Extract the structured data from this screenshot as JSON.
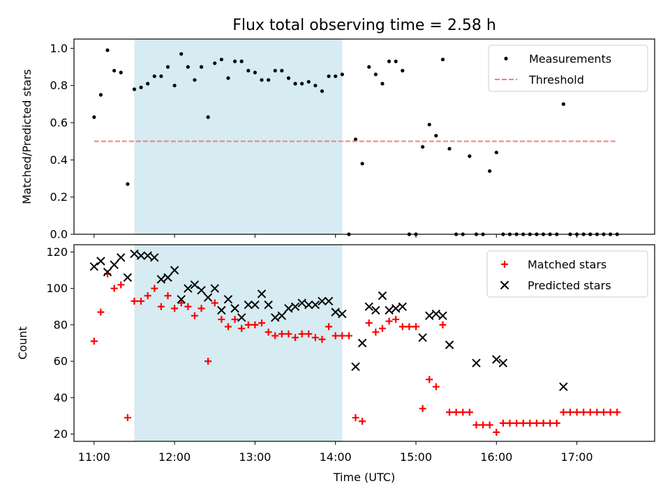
{
  "chart_data": [
    {
      "type": "scatter",
      "title": "Flux total observing time = 2.58 h",
      "xlabel": "",
      "ylabel": "Matched/Predicted stars",
      "ylim": [
        0,
        1.05
      ],
      "yticks": [
        "0.0",
        "0.2",
        "0.4",
        "0.6",
        "0.8",
        "1.0"
      ],
      "xlim": [
        "10:45",
        "17:58"
      ],
      "shaded_span": [
        "11:30",
        "14:05"
      ],
      "legend_position": "top-right",
      "series": [
        {
          "name": "Measurements",
          "color": "#000000",
          "marker": "dot",
          "x": [
            "11:00",
            "11:05",
            "11:10",
            "11:15",
            "11:20",
            "11:25",
            "11:30",
            "11:35",
            "11:40",
            "11:45",
            "11:50",
            "11:55",
            "12:00",
            "12:05",
            "12:10",
            "12:15",
            "12:20",
            "12:25",
            "12:30",
            "12:35",
            "12:40",
            "12:45",
            "12:50",
            "12:55",
            "13:00",
            "13:05",
            "13:10",
            "13:15",
            "13:20",
            "13:25",
            "13:30",
            "13:35",
            "13:40",
            "13:45",
            "13:50",
            "13:55",
            "14:00",
            "14:05",
            "14:10",
            "14:15",
            "14:20",
            "14:25",
            "14:30",
            "14:35",
            "14:40",
            "14:45",
            "14:50",
            "14:55",
            "15:00",
            "15:05",
            "15:10",
            "15:15",
            "15:20",
            "15:25",
            "15:30",
            "15:35",
            "15:40",
            "15:45",
            "15:50",
            "15:55",
            "16:00",
            "16:05",
            "16:10",
            "16:15",
            "16:20",
            "16:25",
            "16:30",
            "16:35",
            "16:40",
            "16:45",
            "16:50",
            "16:55",
            "17:00",
            "17:05",
            "17:10",
            "17:15",
            "17:20",
            "17:25",
            "17:30"
          ],
          "y": [
            0.63,
            0.75,
            0.99,
            0.88,
            0.87,
            0.27,
            0.78,
            0.79,
            0.81,
            0.85,
            0.85,
            0.9,
            0.8,
            0.97,
            0.9,
            0.83,
            0.9,
            0.63,
            0.92,
            0.94,
            0.84,
            0.93,
            0.93,
            0.88,
            0.87,
            0.83,
            0.83,
            0.88,
            0.88,
            0.84,
            0.81,
            0.81,
            0.82,
            0.8,
            0.77,
            0.85,
            0.85,
            0.86,
            0.0,
            0.51,
            0.38,
            0.9,
            0.86,
            0.81,
            0.93,
            0.93,
            0.88,
            0.0,
            0.0,
            0.47,
            0.59,
            0.53,
            0.94,
            0.46,
            0.0,
            0.0,
            0.42,
            0.0,
            0.0,
            0.34,
            0.44,
            0.0,
            0.0,
            0.0,
            0.0,
            0.0,
            0.0,
            0.0,
            0.0,
            0.0,
            0.7,
            0.0,
            0.0,
            0.0,
            0.0,
            0.0,
            0.0,
            0.0,
            0.0
          ]
        },
        {
          "name": "Threshold",
          "color": "#f08080",
          "style": "dashed",
          "x": [
            "11:00",
            "17:30"
          ],
          "y": [
            0.5,
            0.5
          ]
        }
      ]
    },
    {
      "type": "scatter",
      "title": "",
      "xlabel": "Time (UTC)",
      "ylabel": "Count",
      "ylim": [
        16,
        124
      ],
      "yticks": [
        "20",
        "40",
        "60",
        "80",
        "100",
        "120"
      ],
      "xlim": [
        "10:45",
        "17:58"
      ],
      "xticks": [
        "11:00",
        "12:00",
        "13:00",
        "14:00",
        "15:00",
        "16:00",
        "17:00"
      ],
      "shaded_span": [
        "11:30",
        "14:05"
      ],
      "legend_position": "top-right",
      "series": [
        {
          "name": "Matched stars",
          "color": "#ff0000",
          "marker": "plus",
          "x": [
            "11:00",
            "11:05",
            "11:10",
            "11:15",
            "11:20",
            "11:25",
            "11:30",
            "11:35",
            "11:40",
            "11:45",
            "11:50",
            "11:55",
            "12:00",
            "12:05",
            "12:10",
            "12:15",
            "12:20",
            "12:25",
            "12:30",
            "12:35",
            "12:40",
            "12:45",
            "12:50",
            "12:55",
            "13:00",
            "13:05",
            "13:10",
            "13:15",
            "13:20",
            "13:25",
            "13:30",
            "13:35",
            "13:40",
            "13:45",
            "13:50",
            "13:55",
            "14:00",
            "14:05",
            "14:10",
            "14:15",
            "14:20",
            "14:25",
            "14:30",
            "14:35",
            "14:40",
            "14:45",
            "14:50",
            "14:55",
            "15:00",
            "15:05",
            "15:10",
            "15:15",
            "15:20",
            "15:25",
            "15:30",
            "15:35",
            "15:40",
            "15:45",
            "15:50",
            "15:55",
            "16:00",
            "16:05",
            "16:10",
            "16:15",
            "16:20",
            "16:25",
            "16:30",
            "16:35",
            "16:40",
            "16:45",
            "16:50",
            "16:55",
            "17:00",
            "17:05",
            "17:10",
            "17:15",
            "17:20",
            "17:25",
            "17:30"
          ],
          "y": [
            71,
            87,
            108,
            100,
            102,
            29,
            93,
            93,
            96,
            100,
            90,
            96,
            89,
            92,
            90,
            85,
            89,
            60,
            92,
            83,
            79,
            83,
            78,
            80,
            80,
            81,
            76,
            74,
            75,
            75,
            73,
            75,
            75,
            73,
            72,
            79,
            74,
            74,
            74,
            29,
            27,
            81,
            76,
            78,
            82,
            83,
            79,
            79,
            79,
            34,
            50,
            46,
            80,
            32,
            32,
            32,
            32,
            25,
            25,
            25,
            21,
            26,
            26,
            26,
            26,
            26,
            26,
            26,
            26,
            26,
            32,
            32,
            32,
            32,
            32,
            32,
            32,
            32,
            32
          ]
        },
        {
          "name": "Predicted stars",
          "color": "#000000",
          "marker": "x",
          "x": [
            "11:00",
            "11:05",
            "11:10",
            "11:15",
            "11:20",
            "11:25",
            "11:30",
            "11:35",
            "11:40",
            "11:45",
            "11:50",
            "11:55",
            "12:00",
            "12:05",
            "12:10",
            "12:15",
            "12:20",
            "12:25",
            "12:30",
            "12:35",
            "12:40",
            "12:45",
            "12:50",
            "12:55",
            "13:00",
            "13:05",
            "13:10",
            "13:15",
            "13:20",
            "13:25",
            "13:30",
            "13:35",
            "13:40",
            "13:45",
            "13:50",
            "13:55",
            "14:00",
            "14:05",
            "14:15",
            "14:20",
            "14:25",
            "14:30",
            "14:35",
            "14:40",
            "14:45",
            "14:50",
            "15:05",
            "15:10",
            "15:15",
            "15:20",
            "15:25",
            "15:45",
            "16:00",
            "16:05",
            "16:50"
          ],
          "y": [
            112,
            115,
            109,
            113,
            117,
            106,
            119,
            118,
            118,
            117,
            105,
            106,
            110,
            94,
            100,
            102,
            99,
            95,
            100,
            88,
            94,
            89,
            84,
            91,
            91,
            97,
            91,
            84,
            85,
            89,
            90,
            92,
            91,
            91,
            93,
            93,
            87,
            86,
            57,
            70,
            90,
            88,
            96,
            88,
            89,
            90,
            73,
            85,
            86,
            85,
            69,
            59,
            61,
            59,
            46
          ]
        }
      ]
    }
  ]
}
